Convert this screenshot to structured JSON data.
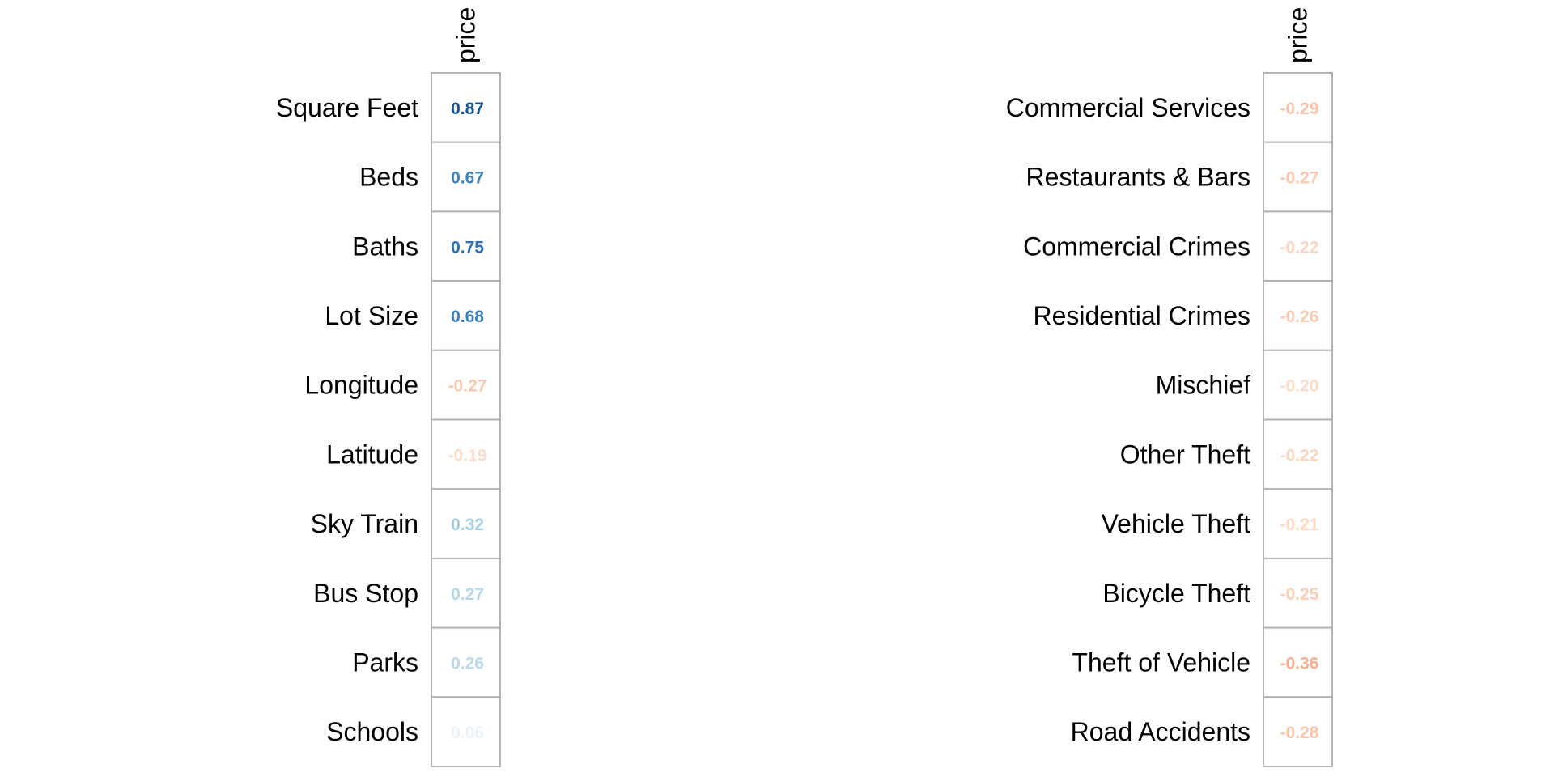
{
  "chart_data": [
    {
      "type": "heatmap",
      "columns": [
        "price"
      ],
      "rows": [
        "Square Feet",
        "Beds",
        "Baths",
        "Lot Size",
        "Longitude",
        "Latitude",
        "Sky Train",
        "Bus Stop",
        "Parks",
        "Schools"
      ],
      "values": [
        0.87,
        0.67,
        0.75,
        0.68,
        -0.27,
        -0.19,
        0.32,
        0.27,
        0.26,
        0.06
      ],
      "labels": [
        "0.87",
        "0.67",
        "0.75",
        "0.68",
        "-0.27",
        "-0.19",
        "0.32",
        "0.27",
        "0.26",
        "0.06"
      ],
      "value_range": [
        -1,
        1
      ],
      "color_scale": "diverging red-white-blue"
    },
    {
      "type": "heatmap",
      "columns": [
        "price"
      ],
      "rows": [
        "Commercial Services",
        "Restaurants & Bars",
        "Commercial Crimes",
        "Residential Crimes",
        "Mischief",
        "Other Theft",
        "Vehicle Theft",
        "Bicycle Theft",
        "Theft of Vehicle",
        "Road Accidents"
      ],
      "values": [
        -0.29,
        -0.27,
        -0.22,
        -0.26,
        -0.2,
        -0.22,
        -0.21,
        -0.25,
        -0.36,
        -0.28
      ],
      "labels": [
        "-0.29",
        "-0.27",
        "-0.22",
        "-0.26",
        "-0.20",
        "-0.22",
        "-0.21",
        "-0.25",
        "-0.36",
        "-0.28"
      ],
      "value_range": [
        -1,
        1
      ],
      "color_scale": "diverging red-white-blue"
    }
  ],
  "colors": {
    "negative_strong": "#b2182b",
    "negative_mid": "#ef8a62",
    "negative_light": "#fddbc7",
    "neutral": "#f7f7f7",
    "positive_light": "#d1e5f0",
    "positive_mid": "#67a9cf",
    "positive_strong": "#2166ac",
    "positive_darkest": "#053061",
    "grid_line": "#b3b3b3"
  }
}
